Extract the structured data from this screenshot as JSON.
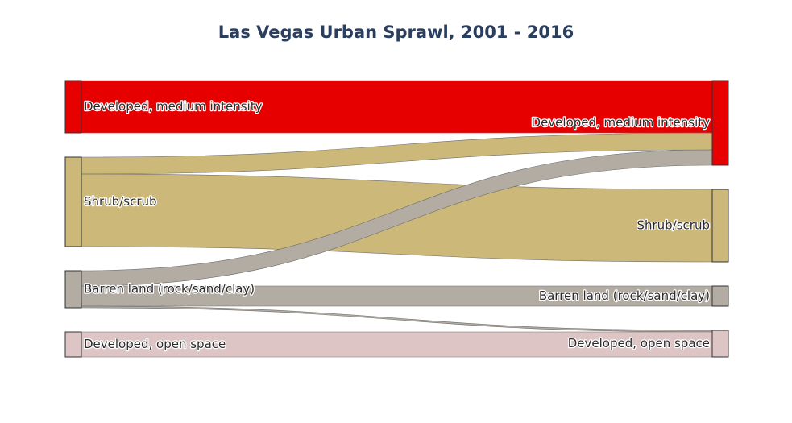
{
  "chart_data": {
    "type": "sankey",
    "title": "Las Vegas Urban Sprawl, 2001 - 2016",
    "nodes": [
      {
        "id": "src_dev_med",
        "label": "Developed, medium intensity",
        "side": "2001",
        "color": "#e60000"
      },
      {
        "id": "src_shrub",
        "label": "Shrub/scrub",
        "side": "2001",
        "color": "#ccb879"
      },
      {
        "id": "src_barren",
        "label": "Barren land (rock/sand/clay)",
        "side": "2001",
        "color": "#b3aca3"
      },
      {
        "id": "src_dev_open",
        "label": "Developed, open space",
        "side": "2001",
        "color": "#dec5c5"
      },
      {
        "id": "dst_dev_med",
        "label": "Developed, medium intensity",
        "side": "2016",
        "color": "#e60000"
      },
      {
        "id": "dst_shrub",
        "label": "Shrub/scrub",
        "side": "2016",
        "color": "#ccb879"
      },
      {
        "id": "dst_barren",
        "label": "Barren land (rock/sand/clay)",
        "side": "2016",
        "color": "#b3aca3"
      },
      {
        "id": "dst_dev_open",
        "label": "Developed, open space",
        "side": "2016",
        "color": "#dec5c5"
      }
    ],
    "links": [
      {
        "source": "src_dev_med",
        "target": "dst_dev_med",
        "value": 65
      },
      {
        "source": "src_shrub",
        "target": "dst_dev_med",
        "value": 21
      },
      {
        "source": "src_shrub",
        "target": "dst_shrub",
        "value": 90
      },
      {
        "source": "src_barren",
        "target": "dst_dev_med",
        "value": 19
      },
      {
        "source": "src_barren",
        "target": "dst_barren",
        "value": 25
      },
      {
        "source": "src_barren",
        "target": "dst_dev_open",
        "value": 2
      },
      {
        "source": "src_dev_open",
        "target": "dst_dev_open",
        "value": 31
      }
    ]
  }
}
